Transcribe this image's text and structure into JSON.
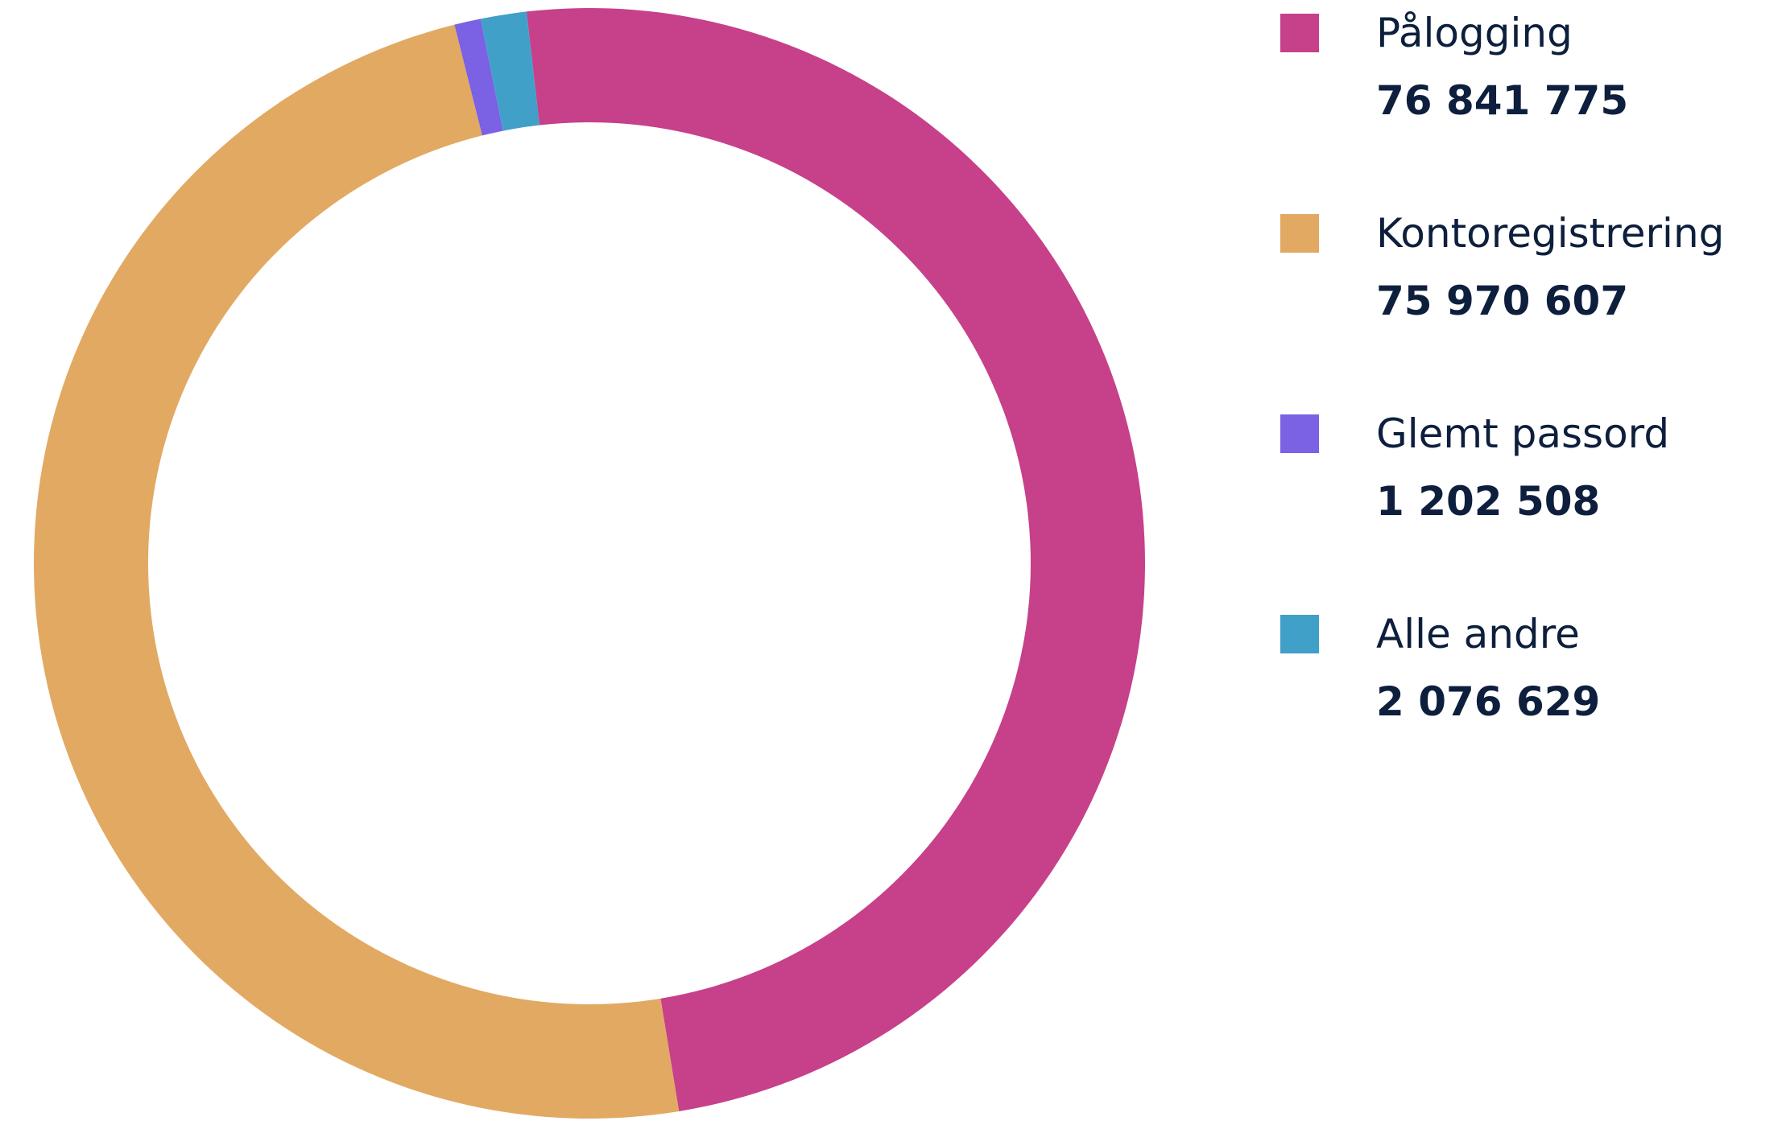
{
  "chart_data": {
    "type": "donut",
    "categories": [
      "Pålogging",
      "Kontoregistrering",
      "Glemt passord",
      "Alle andre"
    ],
    "values": [
      76841775,
      75970607,
      1202508,
      2076629
    ],
    "value_labels": [
      "76 841 775",
      "75 970 607",
      "1 202 508",
      "2 076 629"
    ],
    "colors": [
      "#c7408a",
      "#e2a963",
      "#7b61e4",
      "#41a0c8"
    ],
    "legend": "right"
  }
}
